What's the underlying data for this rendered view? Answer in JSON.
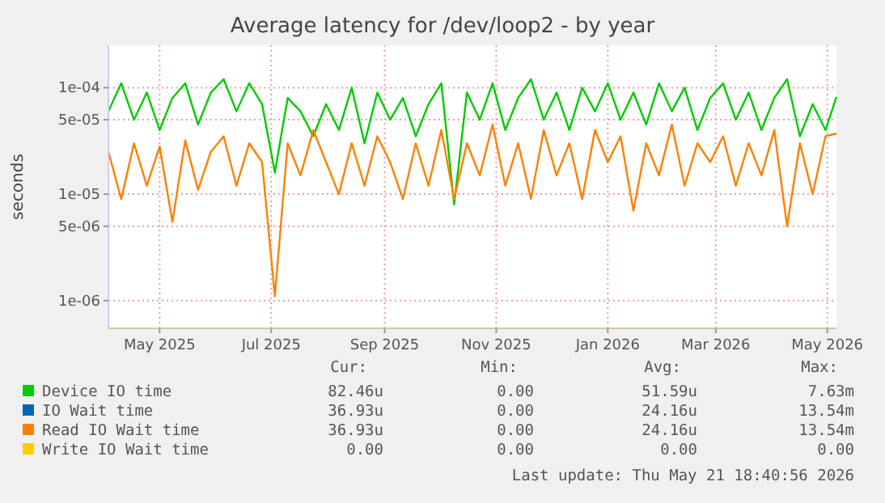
{
  "chart_data": {
    "type": "line",
    "title": "Average latency for /dev/loop2 - by year",
    "ylabel": "seconds",
    "log": "y",
    "grid": true,
    "legend": "bottom",
    "line_style": "solid",
    "marker": "none",
    "xlim": [
      "2025-04-18",
      "2026-05-21"
    ],
    "xticks": [
      {
        "value": "2025-05-16",
        "label": "May 2025"
      },
      {
        "value": "2025-07-16",
        "label": "Jul 2025"
      },
      {
        "value": "2025-09-16",
        "label": "Sep 2025"
      },
      {
        "value": "2025-11-16",
        "label": "Nov 2025"
      },
      {
        "value": "2026-01-16",
        "label": "Jan 2026"
      },
      {
        "value": "2026-03-16",
        "label": "Mar 2026"
      },
      {
        "value": "2026-05-16",
        "label": "May 2026"
      }
    ],
    "ylim": [
      5.5e-07,
      0.00025
    ],
    "yticks": [
      {
        "value": 1e-06,
        "label": "1e-06"
      },
      {
        "value": 5e-06,
        "label": "5e-06"
      },
      {
        "value": 1e-05,
        "label": "1e-05"
      },
      {
        "value": 5e-05,
        "label": "5e-05"
      },
      {
        "value": 0.0001,
        "label": "1e-04"
      }
    ],
    "x": [
      "2025-04-18",
      "2025-04-25",
      "2025-05-02",
      "2025-05-09",
      "2025-05-16",
      "2025-05-23",
      "2025-05-30",
      "2025-06-06",
      "2025-06-13",
      "2025-06-20",
      "2025-06-27",
      "2025-07-04",
      "2025-07-11",
      "2025-07-18",
      "2025-07-25",
      "2025-08-01",
      "2025-08-08",
      "2025-08-15",
      "2025-08-22",
      "2025-08-29",
      "2025-09-05",
      "2025-09-12",
      "2025-09-19",
      "2025-09-26",
      "2025-10-03",
      "2025-10-10",
      "2025-10-17",
      "2025-10-24",
      "2025-10-31",
      "2025-11-07",
      "2025-11-14",
      "2025-11-21",
      "2025-11-28",
      "2025-12-05",
      "2025-12-12",
      "2025-12-19",
      "2025-12-26",
      "2026-01-02",
      "2026-01-09",
      "2026-01-16",
      "2026-01-23",
      "2026-01-30",
      "2026-02-06",
      "2026-02-13",
      "2026-02-20",
      "2026-02-27",
      "2026-03-06",
      "2026-03-13",
      "2026-03-20",
      "2026-03-27",
      "2026-04-03",
      "2026-04-10",
      "2026-04-17",
      "2026-04-24",
      "2026-05-01",
      "2026-05-08",
      "2026-05-15",
      "2026-05-21"
    ],
    "series": [
      {
        "name": "Device IO time",
        "color": "#00cc00",
        "values": [
          6e-05,
          0.00011,
          5e-05,
          9e-05,
          4e-05,
          8e-05,
          0.00011,
          4.5e-05,
          9e-05,
          0.00012,
          6e-05,
          0.00011,
          7e-05,
          1.6e-05,
          8e-05,
          6e-05,
          3.5e-05,
          7e-05,
          4e-05,
          0.0001,
          3e-05,
          9e-05,
          5e-05,
          8e-05,
          3.5e-05,
          7e-05,
          0.00011,
          8e-06,
          9e-05,
          5e-05,
          0.00011,
          4e-05,
          8e-05,
          0.00012,
          5e-05,
          9e-05,
          4e-05,
          0.0001,
          6e-05,
          0.00011,
          5e-05,
          9e-05,
          4.5e-05,
          0.00011,
          6e-05,
          0.0001,
          4e-05,
          8e-05,
          0.00011,
          5e-05,
          9e-05,
          4e-05,
          8e-05,
          0.00012,
          3.5e-05,
          7e-05,
          4e-05,
          8.2e-05
        ]
      },
      {
        "name": "IO Wait time",
        "color": "#0066b3",
        "values": [
          null,
          null,
          null,
          null,
          null,
          null,
          null,
          null,
          null,
          null,
          null,
          null,
          null,
          null,
          null,
          null,
          null,
          null,
          null,
          null,
          null,
          null,
          null,
          null,
          null,
          null,
          null,
          null,
          null,
          null,
          null,
          null,
          null,
          null,
          null,
          null,
          null,
          null,
          null,
          null,
          null,
          null,
          null,
          null,
          null,
          null,
          null,
          null,
          null,
          null,
          null,
          null,
          null,
          null,
          null,
          null,
          null,
          null
        ]
      },
      {
        "name": "Read IO Wait time",
        "color": "#ff8000",
        "values": [
          2.5e-05,
          9e-06,
          3e-05,
          1.2e-05,
          2.8e-05,
          5.5e-06,
          3.2e-05,
          1.1e-05,
          2.5e-05,
          3.5e-05,
          1.2e-05,
          3e-05,
          2e-05,
          1.1e-06,
          3e-05,
          1.5e-05,
          4e-05,
          2e-05,
          1e-05,
          3e-05,
          1.2e-05,
          3.5e-05,
          2e-05,
          9e-06,
          3e-05,
          1.2e-05,
          4e-05,
          9e-06,
          3e-05,
          1.5e-05,
          4.5e-05,
          1.2e-05,
          3e-05,
          9e-06,
          4e-05,
          1.5e-05,
          3e-05,
          9e-06,
          4e-05,
          2e-05,
          3.5e-05,
          7e-06,
          3e-05,
          1.5e-05,
          4.5e-05,
          1.2e-05,
          3e-05,
          2e-05,
          3.5e-05,
          1.2e-05,
          3e-05,
          1.5e-05,
          4e-05,
          5e-06,
          3e-05,
          1e-05,
          3.5e-05,
          3.7e-05
        ]
      },
      {
        "name": "Write IO Wait time",
        "color": "#ffcc00",
        "values": [
          null,
          null,
          null,
          null,
          null,
          null,
          null,
          null,
          null,
          null,
          null,
          null,
          null,
          null,
          null,
          null,
          null,
          null,
          null,
          null,
          null,
          null,
          null,
          null,
          null,
          null,
          null,
          null,
          null,
          null,
          null,
          null,
          null,
          null,
          null,
          null,
          null,
          null,
          null,
          null,
          null,
          null,
          null,
          null,
          null,
          null,
          null,
          null,
          null,
          null,
          null,
          null,
          null,
          null,
          null,
          null,
          null,
          null
        ]
      }
    ],
    "annotations": [
      "Cur:",
      "Min:",
      "Avg:",
      "Max:",
      "82.46u",
      "0.00",
      "51.59u",
      "7.63m",
      "36.93u",
      "0.00",
      "24.16u",
      "13.54m",
      "36.93u",
      "0.00",
      "24.16u",
      "13.54m",
      "0.00",
      "0.00",
      "0.00",
      "0.00",
      "Last update: Thu May 21 18:40:56 2026"
    ]
  }
}
